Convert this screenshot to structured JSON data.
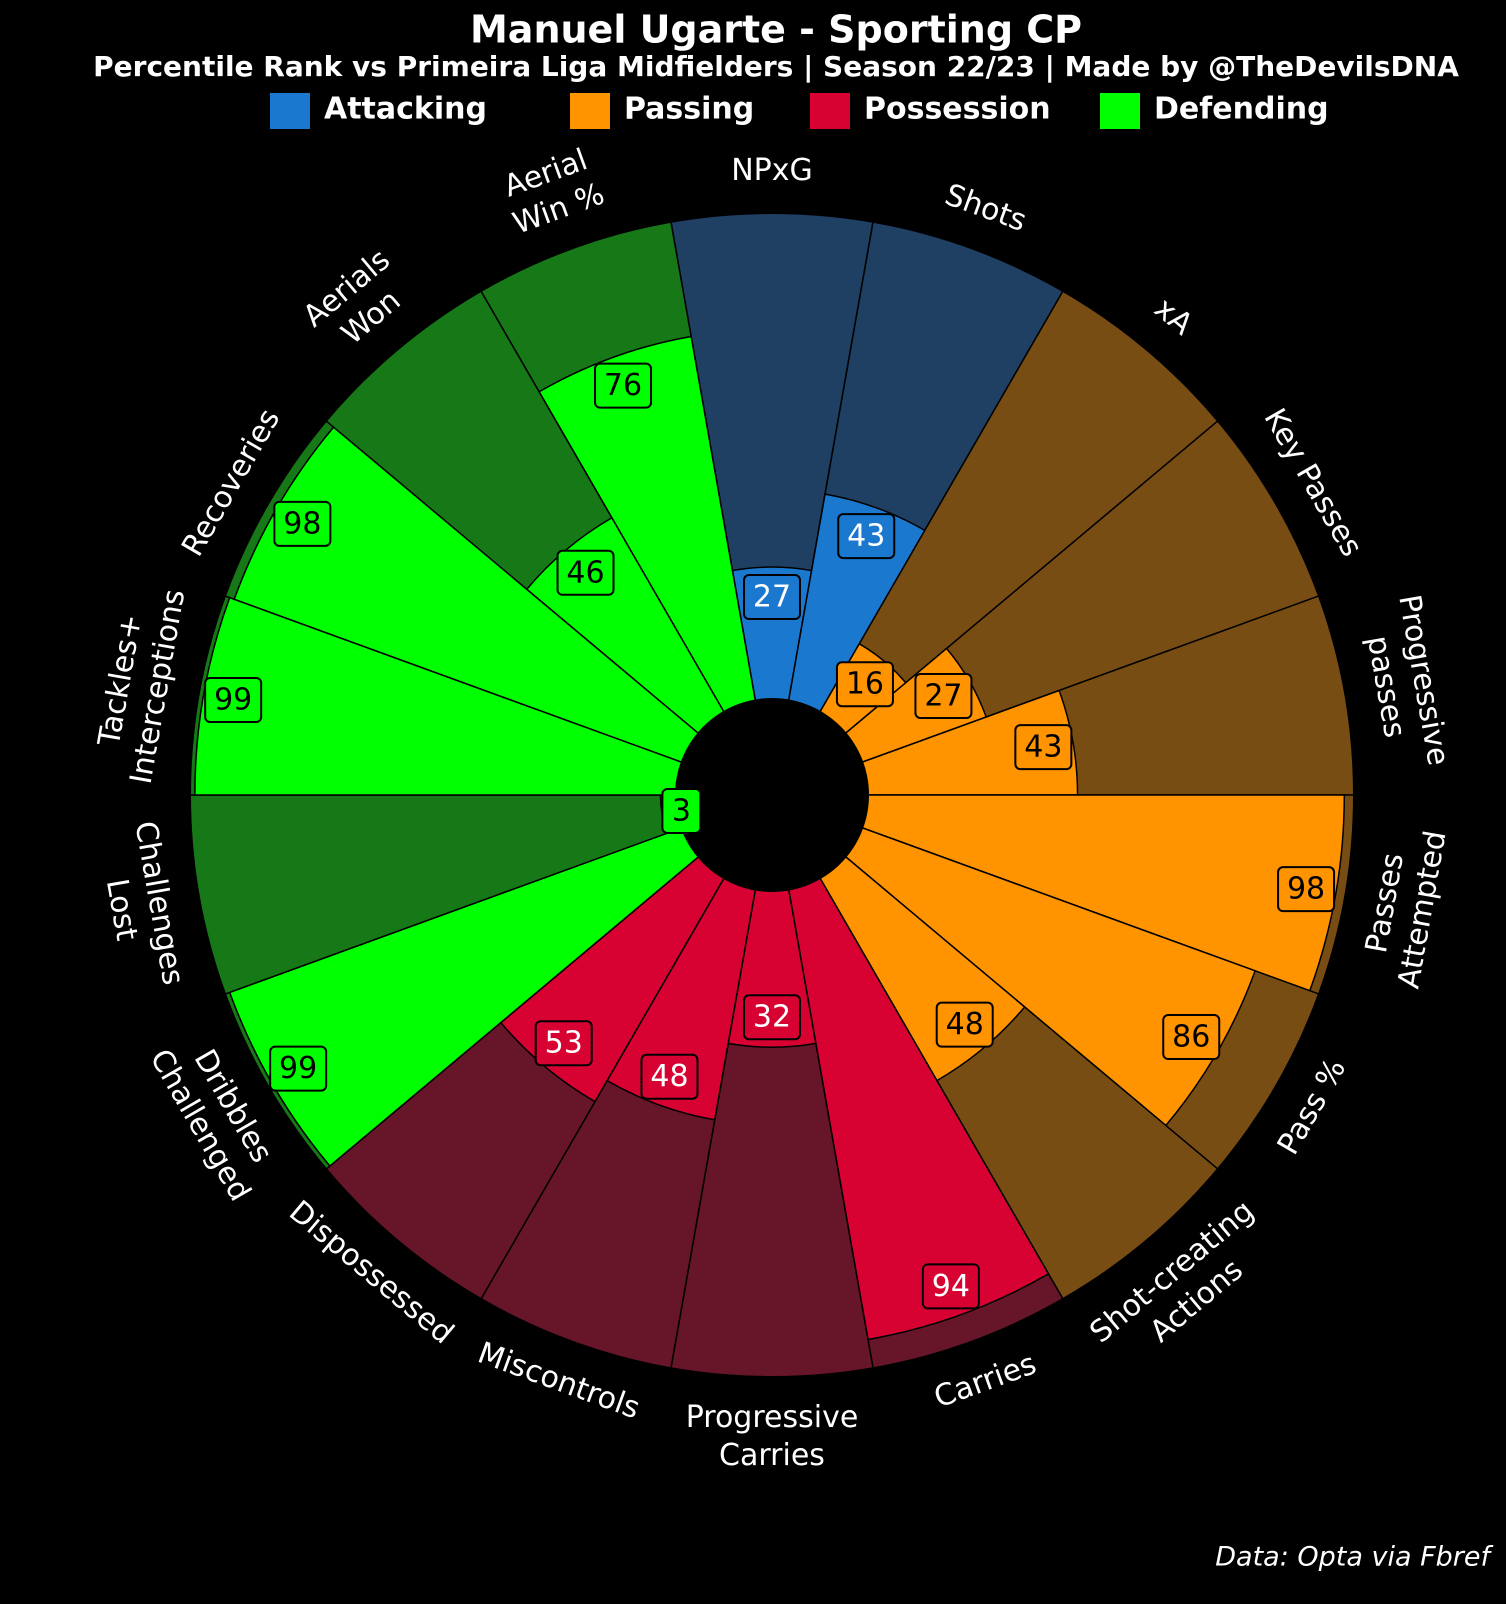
{
  "chart_data": {
    "type": "pizza",
    "title": "Manuel Ugarte - Sporting CP",
    "subtitle": "Percentile Rank vs Primeira Liga Midfielders | Season 22/23 | Made by @TheDevilsDNA",
    "ylim": [
      0,
      100
    ],
    "series": [
      {
        "name": "Attacking",
        "color": "#1a78cf",
        "track_color": "#1f3f63",
        "label_color": "#ffffff",
        "categories": [
          "NPxG",
          "Shots"
        ],
        "values": [
          27,
          43
        ]
      },
      {
        "name": "Passing",
        "color": "#ff9300",
        "track_color": "#784d14",
        "label_color": "#000000",
        "categories": [
          "xA",
          "Key Passes",
          "Progressive\npasses",
          "Passes\nAttempted",
          "Pass %",
          "Shot-creating\nActions"
        ],
        "values": [
          16,
          27,
          43,
          98,
          86,
          48
        ]
      },
      {
        "name": "Possession",
        "color": "#d70232",
        "track_color": "#661628",
        "label_color": "#ffffff",
        "categories": [
          "Carries",
          "Progressive\nCarries",
          "Miscontrols",
          "Dispossessed"
        ],
        "values": [
          94,
          32,
          48,
          53
        ]
      },
      {
        "name": "Defending",
        "color": "#00ff00",
        "track_color": "#177818",
        "label_color": "#000000",
        "categories": [
          "Dribbles\nChallenged",
          "Challenges\nLost",
          "Tackles+\nInterceptions",
          "Recoveries",
          "Aerials\nWon",
          "Aerial\nWin %"
        ],
        "values": [
          99,
          3,
          99,
          98,
          46,
          76
        ]
      }
    ],
    "footer": "Data: Opta via Fbref"
  }
}
